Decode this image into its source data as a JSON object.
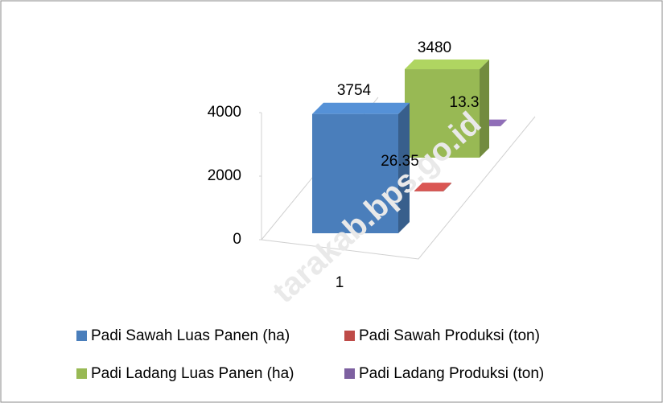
{
  "chart_data": {
    "type": "bar3d",
    "categories": [
      "1"
    ],
    "series": [
      {
        "name": "Padi Sawah Luas Panen (ha)",
        "color": "#4a7ebb",
        "values": [
          3754
        ]
      },
      {
        "name": "Padi Sawah Produksi (ton)",
        "color": "#be4b48",
        "values": [
          26.35
        ]
      },
      {
        "name": "Padi Ladang Luas Panen (ha)",
        "color": "#98b954",
        "values": [
          3480
        ]
      },
      {
        "name": "Padi Ladang Produksi (ton)",
        "color": "#7d60a0",
        "values": [
          13.3
        ]
      }
    ],
    "ylim": [
      0,
      4000
    ],
    "yticks": [
      0,
      2000,
      4000
    ],
    "legend": "bottom",
    "watermark": "tarakab.bps.go.id"
  }
}
